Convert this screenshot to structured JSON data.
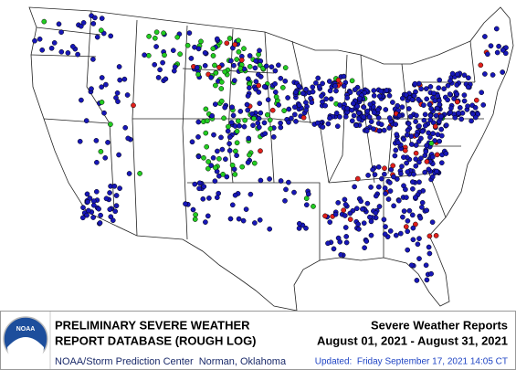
{
  "logo": {
    "text": "NOAA"
  },
  "title_lines": [
    "PRELIMINARY SEVERE WEATHER",
    "REPORT DATABASE (ROUGH LOG)"
  ],
  "credit": "NOAA/Storm Prediction Center  Norman, Oklahoma",
  "report_title": "Severe Weather Reports",
  "date_range": "August 01, 2021 - August 31, 2021",
  "updated": "Updated:  Friday September 17, 2021 14:05 CT"
}
